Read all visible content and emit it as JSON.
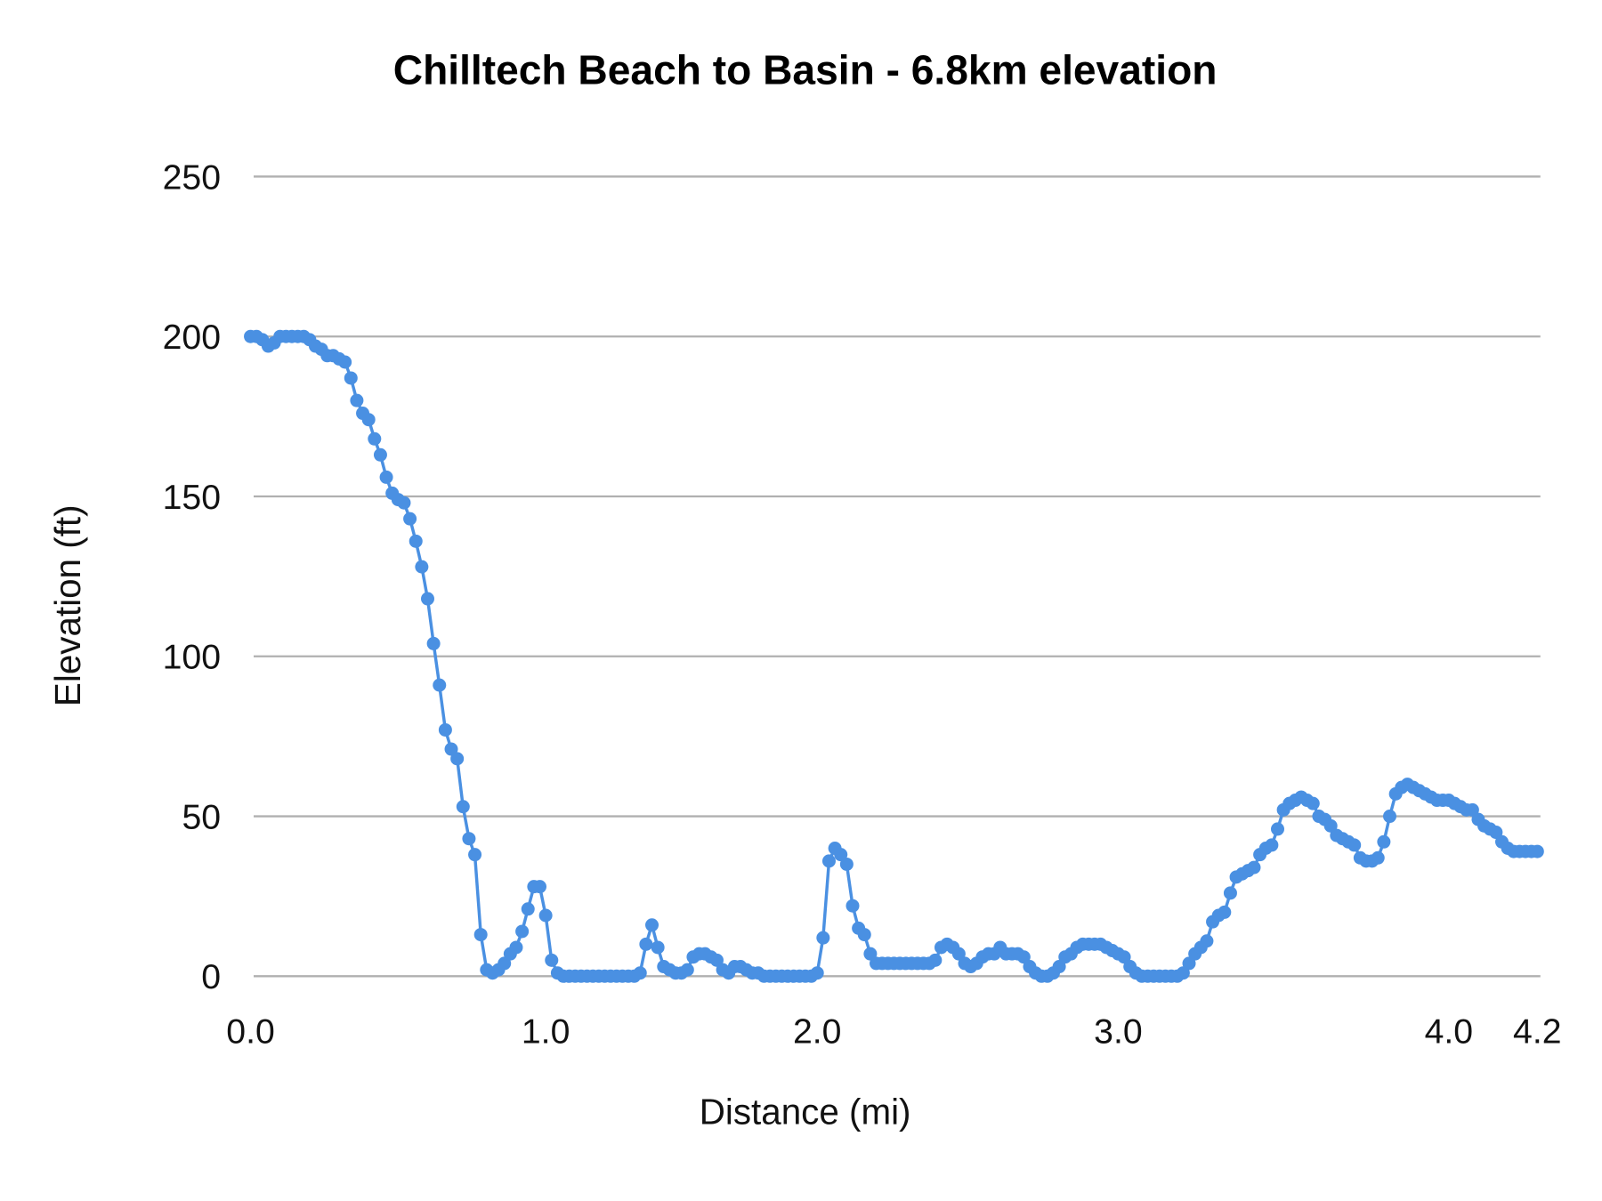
{
  "chart_data": {
    "type": "line",
    "title": "Chilltech Beach to Basin - 6.8km elevation",
    "xlabel": "Distance (mi)",
    "ylabel": "Elevation (ft)",
    "ylim": [
      0,
      250
    ],
    "y_ticks": [
      "0",
      "50",
      "100",
      "150",
      "200",
      "250"
    ],
    "x_ticks": [
      {
        "label": "0.0",
        "point": 0
      },
      {
        "label": "1.0",
        "point": 50
      },
      {
        "label": "2.0",
        "point": 96
      },
      {
        "label": "3.0",
        "point": 147
      },
      {
        "label": "4.0",
        "point": 203
      },
      {
        "label": "4.2",
        "point": 218
      }
    ],
    "grid": true,
    "markers": true,
    "color": "#4a90e2",
    "elevation_ft": [
      200,
      200,
      199,
      197,
      198,
      200,
      200,
      200,
      200,
      200,
      199,
      197,
      196,
      194,
      194,
      193,
      192,
      187,
      180,
      176,
      174,
      168,
      163,
      156,
      151,
      149,
      148,
      143,
      136,
      128,
      118,
      104,
      91,
      77,
      71,
      68,
      53,
      43,
      38,
      13,
      2,
      1,
      2,
      4,
      7,
      9,
      14,
      21,
      28,
      28,
      19,
      5,
      1,
      0,
      0,
      0,
      0,
      0,
      0,
      0,
      0,
      0,
      0,
      0,
      0,
      0,
      1,
      10,
      16,
      9,
      3,
      2,
      1,
      1,
      2,
      6,
      7,
      7,
      6,
      5,
      2,
      1,
      3,
      3,
      2,
      1,
      1,
      0,
      0,
      0,
      0,
      0,
      0,
      0,
      0,
      0,
      1,
      12,
      36,
      40,
      38,
      35,
      22,
      15,
      13,
      7,
      4,
      4,
      4,
      4,
      4,
      4,
      4,
      4,
      4,
      4,
      5,
      9,
      10,
      9,
      7,
      4,
      3,
      4,
      6,
      7,
      7,
      9,
      7,
      7,
      7,
      6,
      3,
      1,
      0,
      0,
      1,
      3,
      6,
      7,
      9,
      10,
      10,
      10,
      10,
      9,
      8,
      7,
      6,
      3,
      1,
      0,
      0,
      0,
      0,
      0,
      0,
      0,
      1,
      4,
      7,
      9,
      11,
      17,
      19,
      20,
      26,
      31,
      32,
      33,
      34,
      38,
      40,
      41,
      46,
      52,
      54,
      55,
      56,
      55,
      54,
      50,
      49,
      47,
      44,
      43,
      42,
      41,
      37,
      36,
      36,
      37,
      42,
      50,
      57,
      59,
      60,
      59,
      58,
      57,
      56,
      55,
      55,
      55,
      54,
      53,
      52,
      52,
      49,
      47,
      46,
      45,
      42,
      40,
      39,
      39,
      39,
      39,
      39
    ]
  }
}
